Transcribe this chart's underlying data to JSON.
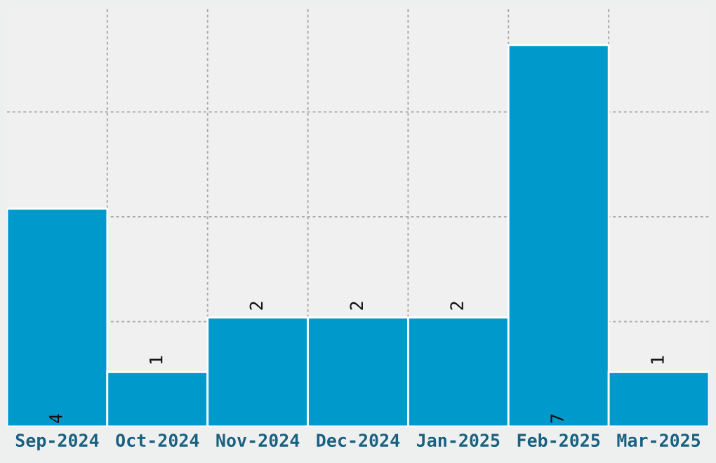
{
  "chart_data": {
    "type": "bar",
    "categories": [
      "Sep-2024",
      "Oct-2024",
      "Nov-2024",
      "Dec-2024",
      "Jan-2025",
      "Feb-2025",
      "Mar-2025"
    ],
    "values": [
      4,
      1,
      2,
      2,
      2,
      7,
      1
    ],
    "color": "#0099cc",
    "ylim": [
      0,
      7.7
    ],
    "yticks": [
      {
        "value": 1.925,
        "label": null
      },
      {
        "value": 3.85,
        "label": null
      },
      {
        "value": 5.775,
        "label": null
      }
    ],
    "tick_labels": "x",
    "grid": true,
    "data_labels": true
  }
}
